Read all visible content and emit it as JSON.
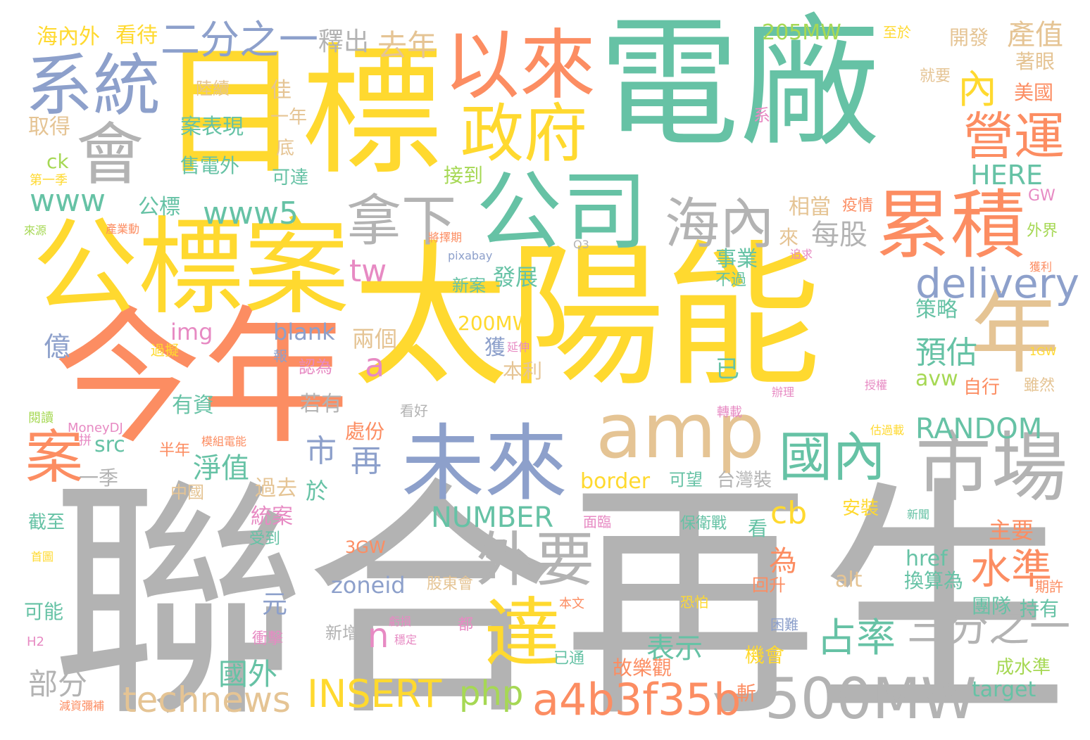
{
  "palette": {
    "teal": "#66c2a5",
    "orange": "#fc8d62",
    "blue": "#8da0cb",
    "pink": "#e78ac3",
    "lime": "#a6d854",
    "yellow": "#ffd92f",
    "tan": "#e5c494",
    "gray": "#b3b3b3"
  },
  "words": [
    {
      "text": "電廠",
      "color": "teal"
    },
    {
      "text": "太陽能",
      "color": "yellow"
    },
    {
      "text": "聯合",
      "color": "gray"
    },
    {
      "text": "再生",
      "color": "gray"
    },
    {
      "text": "今年",
      "color": "orange"
    },
    {
      "text": "目標",
      "color": "yellow"
    },
    {
      "text": "公標案",
      "color": "yellow"
    },
    {
      "text": "以來",
      "color": "orange"
    },
    {
      "text": "系統",
      "color": "blue"
    },
    {
      "text": "公司",
      "color": "teal"
    },
    {
      "text": "累積",
      "color": "orange"
    },
    {
      "text": "未來",
      "color": "blue"
    },
    {
      "text": "amp",
      "color": "tan"
    },
    {
      "text": "市場",
      "color": "gray"
    },
    {
      "text": "年",
      "color": "tan"
    },
    {
      "text": "會",
      "color": "gray"
    },
    {
      "text": "政府",
      "color": "yellow"
    },
    {
      "text": "達",
      "color": "yellow"
    },
    {
      "text": "外要",
      "color": "gray"
    },
    {
      "text": "500MW",
      "color": "gray"
    },
    {
      "text": "國內",
      "color": "teal"
    },
    {
      "text": "海內",
      "color": "gray"
    },
    {
      "text": "拿下",
      "color": "gray"
    },
    {
      "text": "a4b3f35b",
      "color": "orange"
    },
    {
      "text": "三分之一",
      "color": "gray"
    },
    {
      "text": "營運",
      "color": "orange"
    },
    {
      "text": "delivery",
      "color": "blue"
    },
    {
      "text": "二分之一",
      "color": "blue"
    },
    {
      "text": "案",
      "color": "orange"
    },
    {
      "text": "technews",
      "color": "tan"
    },
    {
      "text": "INSERT",
      "color": "yellow"
    },
    {
      "text": "RANDOM",
      "color": "teal"
    },
    {
      "text": "NUMBER",
      "color": "teal"
    },
    {
      "text": "www5",
      "color": "teal"
    },
    {
      "text": "www",
      "color": "teal"
    },
    {
      "text": "水準",
      "color": "orange"
    },
    {
      "text": "占率",
      "color": "teal"
    },
    {
      "text": "php",
      "color": "lime"
    },
    {
      "text": "表示",
      "color": "teal"
    },
    {
      "text": "tw",
      "color": "pink"
    },
    {
      "text": "cb",
      "color": "yellow"
    },
    {
      "text": "內",
      "color": "yellow"
    },
    {
      "text": "產值",
      "color": "tan"
    },
    {
      "text": "HERE",
      "color": "teal"
    },
    {
      "text": "每股",
      "color": "gray"
    },
    {
      "text": "去年",
      "color": "tan"
    },
    {
      "text": "釋出",
      "color": "gray"
    },
    {
      "text": "205MW",
      "color": "lime"
    },
    {
      "text": "預估",
      "color": "teal"
    },
    {
      "text": "市",
      "color": "blue"
    },
    {
      "text": "再",
      "color": "blue"
    },
    {
      "text": "淨值",
      "color": "teal"
    },
    {
      "text": "國外",
      "color": "teal"
    },
    {
      "text": "部分",
      "color": "gray"
    },
    {
      "text": "n",
      "color": "pink"
    },
    {
      "text": "a",
      "color": "pink"
    },
    {
      "text": "億",
      "color": "blue"
    },
    {
      "text": "元",
      "color": "blue"
    },
    {
      "text": "zoneid",
      "color": "blue"
    },
    {
      "text": "blank",
      "color": "blue"
    },
    {
      "text": "img",
      "color": "pink"
    },
    {
      "text": "border",
      "color": "yellow"
    },
    {
      "text": "200MW",
      "color": "yellow"
    },
    {
      "text": "src",
      "color": "teal"
    },
    {
      "text": "href",
      "color": "teal"
    },
    {
      "text": "alt",
      "color": "tan"
    },
    {
      "text": "avw",
      "color": "lime"
    },
    {
      "text": "target",
      "color": "teal"
    },
    {
      "text": "海內外",
      "color": "yellow"
    },
    {
      "text": "看待",
      "color": "yellow"
    },
    {
      "text": "陸續",
      "color": "tan"
    },
    {
      "text": "案表現",
      "color": "teal"
    },
    {
      "text": "售電外",
      "color": "teal"
    },
    {
      "text": "佳",
      "color": "tan"
    },
    {
      "text": "一年",
      "color": "tan"
    },
    {
      "text": "底",
      "color": "tan"
    },
    {
      "text": "可達",
      "color": "teal"
    },
    {
      "text": "取得",
      "color": "tan"
    },
    {
      "text": "ck",
      "color": "lime"
    },
    {
      "text": "第一季",
      "color": "yellow"
    },
    {
      "text": "公標",
      "color": "teal"
    },
    {
      "text": "來源",
      "color": "lime"
    },
    {
      "text": "產業動",
      "color": "orange"
    },
    {
      "text": "接到",
      "color": "lime"
    },
    {
      "text": "相當",
      "color": "tan"
    },
    {
      "text": "疫情",
      "color": "orange"
    },
    {
      "text": "事業",
      "color": "teal"
    },
    {
      "text": "不過",
      "color": "teal"
    },
    {
      "text": "來",
      "color": "tan"
    },
    {
      "text": "新案",
      "color": "teal"
    },
    {
      "text": "發展",
      "color": "teal"
    },
    {
      "text": "策略",
      "color": "teal"
    },
    {
      "text": "兩個",
      "color": "tan"
    },
    {
      "text": "獲",
      "color": "blue"
    },
    {
      "text": "本利",
      "color": "tan"
    },
    {
      "text": "延伸",
      "color": "pink"
    },
    {
      "text": "過擬",
      "color": "yellow"
    },
    {
      "text": "報",
      "color": "blue"
    },
    {
      "text": "認為",
      "color": "pink"
    },
    {
      "text": "有資",
      "color": "teal"
    },
    {
      "text": "若有",
      "color": "gray"
    },
    {
      "text": "已",
      "color": "teal"
    },
    {
      "text": "自行",
      "color": "orange"
    },
    {
      "text": "雖然",
      "color": "tan"
    },
    {
      "text": "處份",
      "color": "orange"
    },
    {
      "text": "看好",
      "color": "gray"
    },
    {
      "text": "轉載",
      "color": "pink"
    },
    {
      "text": "一季",
      "color": "gray"
    },
    {
      "text": "半年",
      "color": "orange"
    },
    {
      "text": "拼",
      "color": "pink"
    },
    {
      "text": "模組電能",
      "color": "orange"
    },
    {
      "text": "MoneyDJ",
      "color": "pink"
    },
    {
      "text": "閱讀",
      "color": "lime"
    },
    {
      "text": "於",
      "color": "teal"
    },
    {
      "text": "過去",
      "color": "tan"
    },
    {
      "text": "中國",
      "color": "tan"
    },
    {
      "text": "統案",
      "color": "pink"
    },
    {
      "text": "受到",
      "color": "teal"
    },
    {
      "text": "截至",
      "color": "teal"
    },
    {
      "text": "首圖",
      "color": "yellow"
    },
    {
      "text": "3GW",
      "color": "orange"
    },
    {
      "text": "股東會",
      "color": "tan"
    },
    {
      "text": "本文",
      "color": "orange"
    },
    {
      "text": "可能",
      "color": "teal"
    },
    {
      "text": "H2",
      "color": "pink"
    },
    {
      "text": "減資彌補",
      "color": "orange"
    },
    {
      "text": "衝擊",
      "color": "pink"
    },
    {
      "text": "新增",
      "color": "gray"
    },
    {
      "text": "穩定",
      "color": "pink"
    },
    {
      "text": "虧損",
      "color": "pink"
    },
    {
      "text": "都",
      "color": "pink"
    },
    {
      "text": "故樂觀",
      "color": "orange"
    },
    {
      "text": "已通",
      "color": "teal"
    },
    {
      "text": "機會",
      "color": "yellow"
    },
    {
      "text": "斬",
      "color": "orange"
    },
    {
      "text": "成水準",
      "color": "lime"
    },
    {
      "text": "持有",
      "color": "teal"
    },
    {
      "text": "團隊",
      "color": "teal"
    },
    {
      "text": "換算為",
      "color": "teal"
    },
    {
      "text": "回升",
      "color": "orange"
    },
    {
      "text": "期許",
      "color": "orange"
    },
    {
      "text": "恐怕",
      "color": "yellow"
    },
    {
      "text": "困難",
      "color": "blue"
    },
    {
      "text": "面臨",
      "color": "pink"
    },
    {
      "text": "保衛戰",
      "color": "teal"
    },
    {
      "text": "看",
      "color": "teal"
    },
    {
      "text": "主要",
      "color": "orange"
    },
    {
      "text": "新聞",
      "color": "teal"
    },
    {
      "text": "安裝",
      "color": "yellow"
    },
    {
      "text": "台灣裝",
      "color": "gray"
    },
    {
      "text": "可望",
      "color": "teal"
    },
    {
      "text": "為",
      "color": "orange"
    },
    {
      "text": "至於",
      "color": "yellow"
    },
    {
      "text": "開發",
      "color": "tan"
    },
    {
      "text": "著眼",
      "color": "tan"
    },
    {
      "text": "美國",
      "color": "orange"
    },
    {
      "text": "就要",
      "color": "tan"
    },
    {
      "text": "系",
      "color": "pink"
    },
    {
      "text": "GW",
      "color": "pink"
    },
    {
      "text": "外界",
      "color": "lime"
    },
    {
      "text": "獲利",
      "color": "orange"
    },
    {
      "text": "1GW",
      "color": "yellow"
    },
    {
      "text": "辦理",
      "color": "pink"
    },
    {
      "text": "授權",
      "color": "pink"
    },
    {
      "text": "估過載",
      "color": "yellow"
    },
    {
      "text": "將擇期",
      "color": "orange"
    },
    {
      "text": "pixabay",
      "color": "blue"
    },
    {
      "text": "Q3",
      "color": "gray"
    },
    {
      "text": "追求",
      "color": "pink"
    }
  ]
}
